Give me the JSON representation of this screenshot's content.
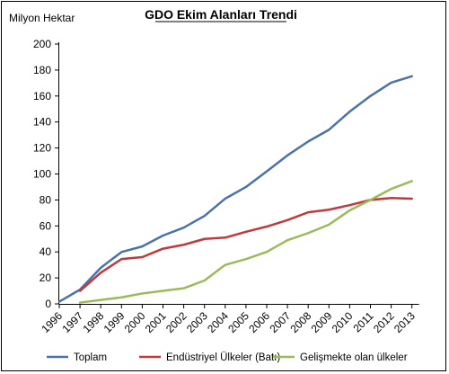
{
  "chart_data": {
    "type": "line",
    "title": "GDO Ekim Alanları Trendi",
    "ylabel": "Milyon Hektar",
    "xlabel": "",
    "categories": [
      "1996",
      "1997",
      "1998",
      "1999",
      "2000",
      "2001",
      "2002",
      "2003",
      "2004",
      "2005",
      "2006",
      "2007",
      "2008",
      "2009",
      "2010",
      "2011",
      "2012",
      "2013"
    ],
    "yticks": [
      "0",
      "20",
      "40",
      "60",
      "80",
      "100",
      "120",
      "140",
      "160",
      "180",
      "200"
    ],
    "ylim": [
      0,
      200
    ],
    "grid": false,
    "legend_position": "bottom",
    "series": [
      {
        "name": "Toplam",
        "color": "#4a73a8",
        "values": [
          1.7,
          11,
          27.8,
          39.9,
          44.2,
          52.6,
          58.7,
          67.7,
          81,
          90,
          102,
          114.3,
          125,
          134,
          148,
          160,
          170.3,
          175.2
        ]
      },
      {
        "name": "Endüstriyel Ülkeler (Batı)",
        "color": "#c0393b",
        "values": [
          null,
          10,
          24,
          34.5,
          36,
          42.5,
          45.5,
          50,
          51,
          55.5,
          59.5,
          64.5,
          70.5,
          72.5,
          76,
          80,
          81.5,
          81
        ]
      },
      {
        "name": "Gelişmekte olan ülkeler",
        "color": "#9bbb59",
        "values": [
          null,
          1,
          3,
          5,
          8,
          10,
          12,
          18,
          30,
          34.5,
          40,
          49,
          54.5,
          61,
          72,
          80,
          88.5,
          94.5
        ]
      }
    ]
  }
}
